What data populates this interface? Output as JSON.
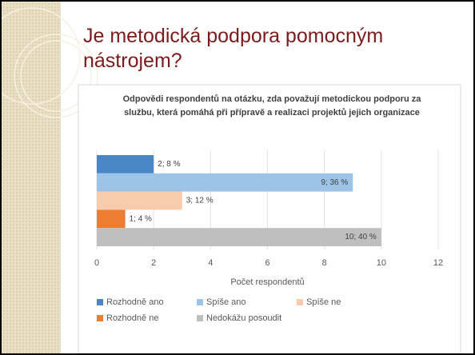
{
  "slide_title": "Je metodická podpora pomocným nástrojem?",
  "chart_data": {
    "type": "bar",
    "orientation": "horizontal",
    "title": "Odpovědi respondentů na otázku, zda považují metodickou podporu za službu, která pomáhá při přípravě a realizaci projektů jejich organizace",
    "xlabel": "Počet respondentů",
    "series": [
      {
        "name": "Rozhodně ano",
        "color": "#4a86c5",
        "values": [
          2
        ],
        "value_labels": [
          "2; 8 %"
        ]
      },
      {
        "name": "Spíše ano",
        "color": "#9dc3e6",
        "values": [
          9
        ],
        "value_labels": [
          "9; 36 %"
        ]
      },
      {
        "name": "Spíše ne",
        "color": "#f8cbad",
        "values": [
          3
        ],
        "value_labels": [
          "3; 12 %"
        ]
      },
      {
        "name": "Rozhodně ne",
        "color": "#ed7d31",
        "values": [
          1
        ],
        "value_labels": [
          "1; 4 %"
        ]
      },
      {
        "name": "Nedokážu posoudit",
        "color": "#bfbfbf",
        "values": [
          10
        ],
        "value_labels": [
          "10; 40 %"
        ]
      }
    ],
    "xlim": [
      0,
      12
    ],
    "xticks": [
      0,
      2,
      4,
      6,
      8,
      10,
      12
    ],
    "grid": true,
    "legend": "bottom"
  }
}
